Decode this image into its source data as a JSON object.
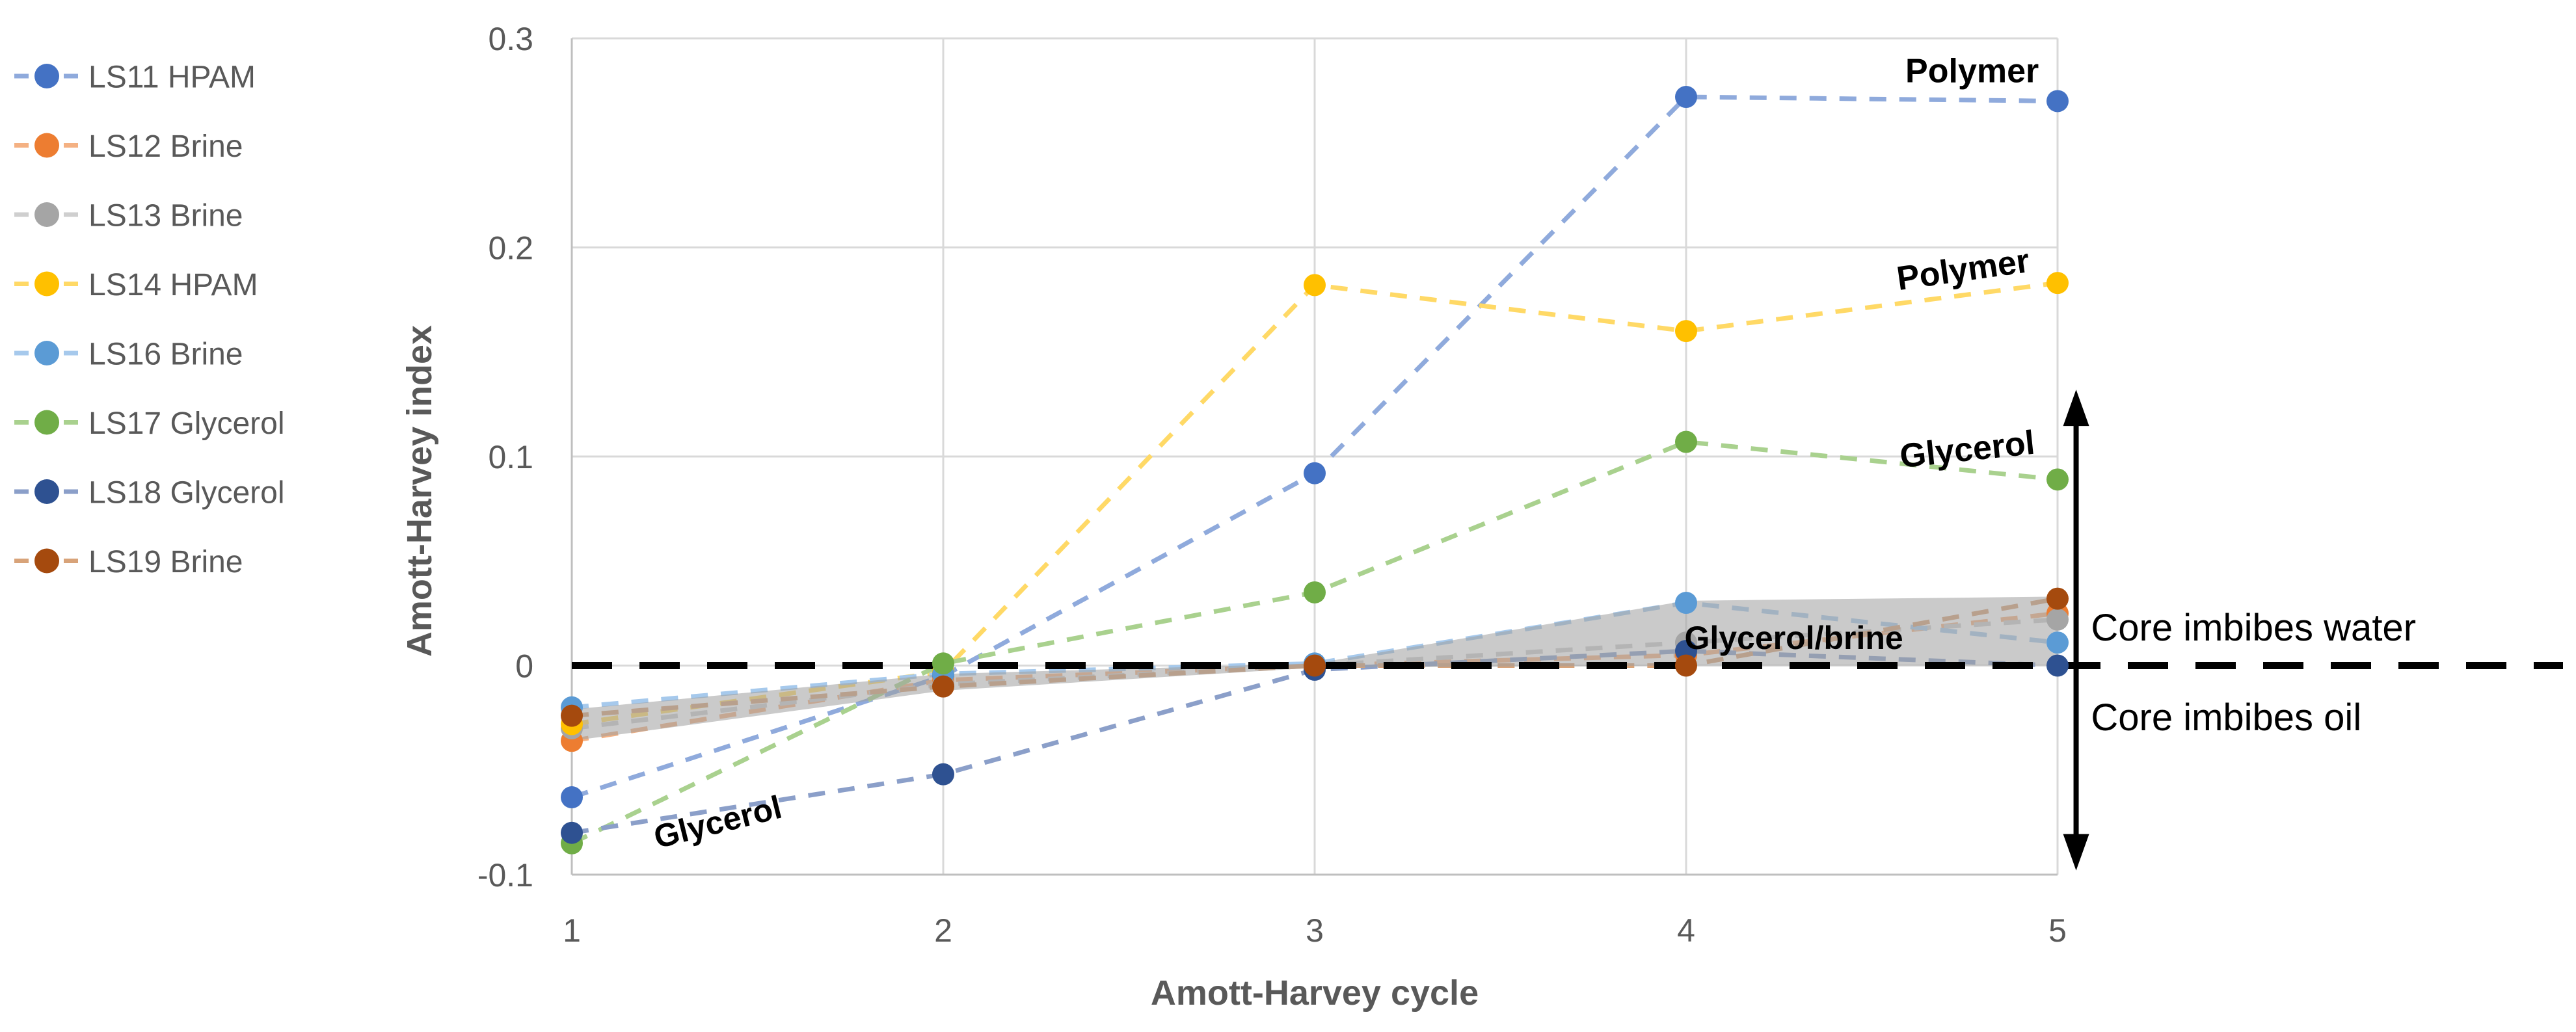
{
  "figure": {
    "background": "#FFFFFF",
    "text_color": "#595959",
    "annotation_color": "#000000"
  },
  "chart_data": {
    "type": "line",
    "title": "",
    "xlabel": "Amott-Harvey cycle",
    "ylabel": "Amott-Harvey index",
    "x": [
      1,
      2,
      3,
      4,
      5
    ],
    "xtick_labels": [
      "1",
      "2",
      "3",
      "4",
      "5"
    ],
    "yticks": [
      0.3,
      0.2,
      0.1,
      0,
      -0.1
    ],
    "ytick_labels": [
      "0.3",
      "0.2",
      "0.1",
      "0",
      "-0.1"
    ],
    "xlim": [
      1,
      5
    ],
    "ylim": [
      -0.1,
      0.3
    ],
    "grid": true,
    "grid_color": "#D9D9D9",
    "axis_line_color": "#BFBFBF",
    "axis_label_color": "#595959",
    "legend_position": "left",
    "series": [
      {
        "name": "LS11 HPAM",
        "values": [
          -0.063,
          -0.005,
          0.092,
          0.272,
          0.27
        ],
        "marker_color": "#4472C4",
        "line_color": "#8FAADC",
        "line_style": "dashed"
      },
      {
        "name": "LS12 Brine",
        "values": [
          -0.036,
          -0.007,
          0.0,
          0.005,
          0.025
        ],
        "marker_color": "#ED7D31",
        "line_color": "#F4B183",
        "line_style": "dashed"
      },
      {
        "name": "LS13 Brine",
        "values": [
          -0.03,
          -0.009,
          0.0,
          0.011,
          0.022
        ],
        "marker_color": "#A5A5A5",
        "line_color": "#CFCFCF",
        "line_style": "dashed"
      },
      {
        "name": "LS14 HPAM",
        "values": [
          -0.028,
          -0.003,
          0.182,
          0.16,
          0.183
        ],
        "marker_color": "#FFC000",
        "line_color": "#FFD966",
        "line_style": "dashed"
      },
      {
        "name": "LS16 Brine",
        "values": [
          -0.02,
          -0.004,
          0.001,
          0.03,
          0.011
        ],
        "marker_color": "#5B9BD5",
        "line_color": "#A6C9EC",
        "line_style": "dashed"
      },
      {
        "name": "LS17 Glycerol",
        "values": [
          -0.085,
          0.001,
          0.035,
          0.107,
          0.089
        ],
        "marker_color": "#70AD47",
        "line_color": "#A9D18E",
        "line_style": "dashed"
      },
      {
        "name": "LS18 Glycerol",
        "values": [
          -0.08,
          -0.052,
          -0.002,
          0.007,
          0.0
        ],
        "marker_color": "#2E5191",
        "line_color": "#8B9FC9",
        "line_style": "dashed"
      },
      {
        "name": "LS19 Brine",
        "values": [
          -0.024,
          -0.01,
          0.0,
          0.0,
          0.032
        ],
        "marker_color": "#A54A0E",
        "line_color": "#D8A379",
        "line_style": "dashed"
      }
    ],
    "baseline": {
      "value": 0,
      "style": "dashed",
      "color": "#000000"
    },
    "band": {
      "label": "Glycerol/brine",
      "upper": [
        [
          1,
          -0.021
        ],
        [
          2,
          -0.004
        ],
        [
          3,
          0.001
        ],
        [
          4,
          0.031
        ],
        [
          5,
          0.033
        ]
      ],
      "lower": [
        [
          1,
          -0.036
        ],
        [
          2,
          -0.012
        ],
        [
          3,
          -0.001
        ],
        [
          4,
          0.0
        ],
        [
          5,
          0.0
        ]
      ],
      "color": "#9E9E9E",
      "opacity": 0.55
    },
    "annotations": [
      {
        "id": "polymer-top",
        "text": "Polymer",
        "x": 4.77,
        "y": 0.279,
        "rotate": 0,
        "bold": true,
        "size": 52,
        "anchor": "middle"
      },
      {
        "id": "polymer-mid",
        "text": "Polymer",
        "x": 4.75,
        "y": 0.184,
        "rotate": -8,
        "bold": true,
        "size": 52,
        "anchor": "middle"
      },
      {
        "id": "glycerol-right",
        "text": "Glycerol",
        "x": 4.76,
        "y": 0.098,
        "rotate": -6,
        "bold": true,
        "size": 52,
        "anchor": "middle"
      },
      {
        "id": "glycerol-brine",
        "text": "Glycerol/brine",
        "x": 4.29,
        "y": 0.008,
        "rotate": 0,
        "bold": true,
        "size": 50,
        "anchor": "middle"
      },
      {
        "id": "glycerol-bottom",
        "text": "Glycerol",
        "x": 1.4,
        "y": -0.08,
        "rotate": -14,
        "bold": true,
        "size": 50,
        "anchor": "middle"
      },
      {
        "id": "core-water",
        "text": "Core imbibes water",
        "x": 5.09,
        "y": 0.012,
        "rotate": 0,
        "bold": false,
        "size": 58,
        "anchor": "start"
      },
      {
        "id": "core-oil",
        "text": "Core imbibes oil",
        "x": 5.09,
        "y": -0.031,
        "rotate": 0,
        "bold": false,
        "size": 58,
        "anchor": "start"
      }
    ],
    "arrow": {
      "x": 5.05,
      "y_top": 0.132,
      "y_bottom": -0.098,
      "double_headed": true,
      "color": "#000000"
    }
  }
}
